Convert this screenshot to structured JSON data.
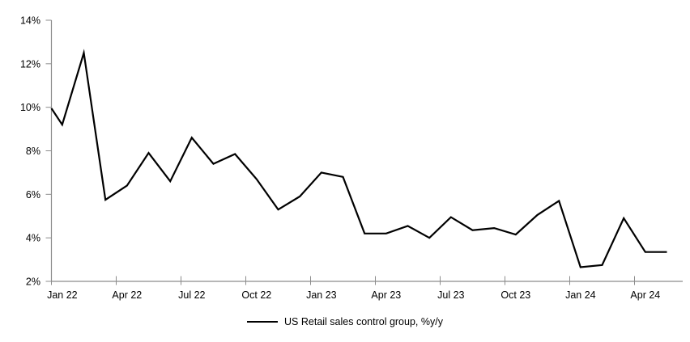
{
  "chart_data": {
    "type": "line",
    "title": "",
    "legend": "US Retail sales control group, %y/y",
    "categories": [
      "Jan 22",
      "Feb 22",
      "Mar 22",
      "Apr 22",
      "May 22",
      "Jun 22",
      "Jul 22",
      "Aug 22",
      "Sep 22",
      "Oct 22",
      "Nov 22",
      "Dec 22",
      "Jan 23",
      "Feb 23",
      "Mar 23",
      "Apr 23",
      "May 23",
      "Jun 23",
      "Jul 23",
      "Aug 23",
      "Sep 23",
      "Oct 23",
      "Nov 23",
      "Dec 23",
      "Jan 24",
      "Feb 24",
      "Mar 24",
      "Apr 24",
      "May 24"
    ],
    "values": [
      9.2,
      12.5,
      5.75,
      6.4,
      7.9,
      6.6,
      8.6,
      7.4,
      7.85,
      6.7,
      5.3,
      5.9,
      7.0,
      6.8,
      4.2,
      4.2,
      4.55,
      4.0,
      4.95,
      4.35,
      4.45,
      4.15,
      5.05,
      5.7,
      2.65,
      2.75,
      4.9,
      3.35,
      3.35
    ],
    "edge_start_value": 9.95,
    "xlabel": "",
    "ylabel": "",
    "ylim": [
      2,
      14
    ],
    "y_tick_labels": [
      "2%",
      "4%",
      "6%",
      "8%",
      "10%",
      "12%",
      "14%"
    ],
    "x_tick_labels": [
      "Jan 22",
      "Apr 22",
      "Jul 22",
      "Oct 22",
      "Jan 23",
      "Apr 23",
      "Jul 23",
      "Oct 23",
      "Jan 24",
      "Apr 24"
    ],
    "x_tick_interval_months": 3,
    "grid": false,
    "legend_position": "bottom-center",
    "line_color": "#000000",
    "axis_color": "#8c8c8c",
    "background_color": "#ffffff"
  }
}
